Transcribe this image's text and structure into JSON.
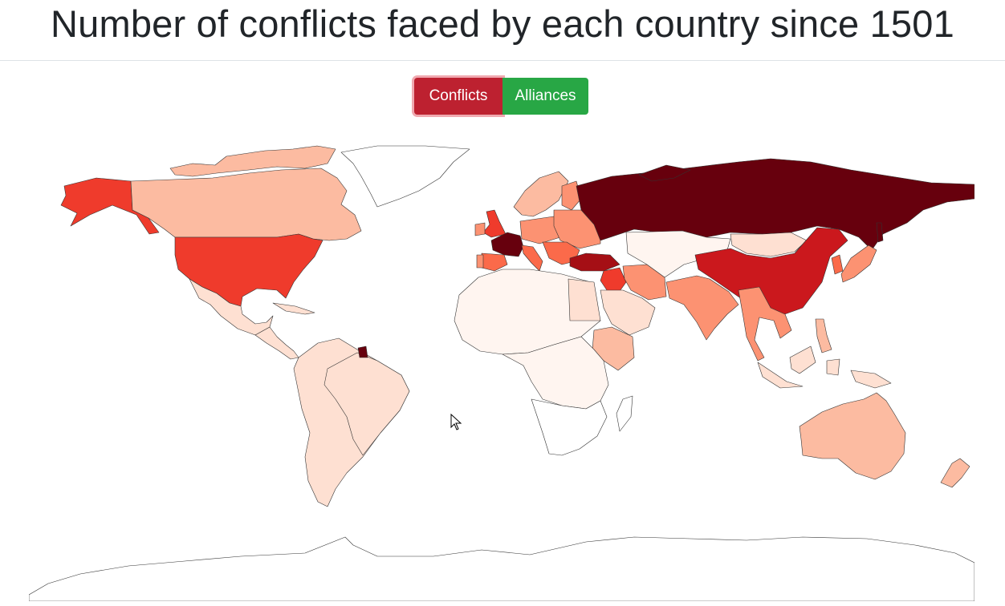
{
  "title": "Number of conflicts faced by each country since 1501",
  "controls": {
    "conflicts_label": "Conflicts",
    "alliances_label": "Alliances",
    "active": "Conflicts"
  },
  "colors": {
    "scale": [
      "#ffffff",
      "#fff5f0",
      "#fee0d2",
      "#fcbba1",
      "#fc9272",
      "#fb6a4a",
      "#ef3b2c",
      "#cb181d",
      "#a50f15",
      "#67000d"
    ],
    "border": "#333333",
    "active_button": "#bd2130",
    "inactive_button": "#28a745"
  },
  "legend_levels": "not shown",
  "regions": [
    {
      "id": "usa",
      "level": 6
    },
    {
      "id": "alaska",
      "level": 6
    },
    {
      "id": "canada",
      "level": 3
    },
    {
      "id": "greenland",
      "level": 0
    },
    {
      "id": "mexico",
      "level": 2
    },
    {
      "id": "central-america",
      "level": 2
    },
    {
      "id": "cuba",
      "level": 2
    },
    {
      "id": "south-america",
      "level": 2
    },
    {
      "id": "brazil",
      "level": 2
    },
    {
      "id": "french-guiana",
      "level": 9
    },
    {
      "id": "uk",
      "level": 6
    },
    {
      "id": "ireland",
      "level": 4
    },
    {
      "id": "france",
      "level": 9
    },
    {
      "id": "spain",
      "level": 5
    },
    {
      "id": "portugal",
      "level": 4
    },
    {
      "id": "italy",
      "level": 5
    },
    {
      "id": "germany",
      "level": 4
    },
    {
      "id": "scandinavia",
      "level": 3
    },
    {
      "id": "finland",
      "level": 4
    },
    {
      "id": "eastern-europe",
      "level": 4
    },
    {
      "id": "balkans",
      "level": 5
    },
    {
      "id": "russia",
      "level": 9
    },
    {
      "id": "turkey",
      "level": 8
    },
    {
      "id": "syria",
      "level": 6
    },
    {
      "id": "iran",
      "level": 4
    },
    {
      "id": "arabia",
      "level": 2
    },
    {
      "id": "central-asia",
      "level": 1
    },
    {
      "id": "mongolia",
      "level": 2
    },
    {
      "id": "china",
      "level": 7
    },
    {
      "id": "korea",
      "level": 5
    },
    {
      "id": "japan",
      "level": 4
    },
    {
      "id": "india",
      "level": 4
    },
    {
      "id": "southeast-asia",
      "level": 4
    },
    {
      "id": "indonesia",
      "level": 2
    },
    {
      "id": "philippines",
      "level": 3
    },
    {
      "id": "north-africa",
      "level": 1
    },
    {
      "id": "egypt",
      "level": 2
    },
    {
      "id": "horn-of-africa",
      "level": 3
    },
    {
      "id": "sub-saharan-africa",
      "level": 1
    },
    {
      "id": "southern-africa",
      "level": 0
    },
    {
      "id": "madagascar",
      "level": 0
    },
    {
      "id": "australia",
      "level": 3
    },
    {
      "id": "new-zealand",
      "level": 3
    },
    {
      "id": "antarctica",
      "level": 0
    }
  ]
}
